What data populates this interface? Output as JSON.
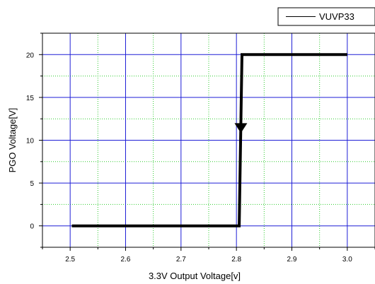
{
  "chart_data": {
    "type": "line",
    "xlabel": "3.3V Output Voltage[v]",
    "ylabel": "PGO Voltage[V]",
    "xlim": [
      2.45,
      3.05
    ],
    "ylim": [
      -2.5,
      22.5
    ],
    "x_ticks": [
      2.5,
      2.6,
      2.7,
      2.8,
      2.9,
      3.0
    ],
    "x_tick_labels": [
      "2.5",
      "2.6",
      "2.7",
      "2.8",
      "2.9",
      "3.0"
    ],
    "y_ticks": [
      0,
      5,
      10,
      15,
      20
    ],
    "y_tick_labels": [
      "0",
      "5",
      "10",
      "15",
      "20"
    ],
    "major_grid_color": "#1f1fd6",
    "minor_grid_color": "#2ecc2e",
    "grid": true,
    "legend_position": "top-right",
    "series": [
      {
        "name": "VUVP33",
        "color": "#000000",
        "x": [
          2.503,
          2.805,
          2.81,
          3.0
        ],
        "y": [
          0,
          0,
          20,
          20
        ]
      }
    ],
    "annotations": [
      {
        "type": "arrow-down",
        "x": 2.808,
        "y": 11.5
      }
    ]
  }
}
